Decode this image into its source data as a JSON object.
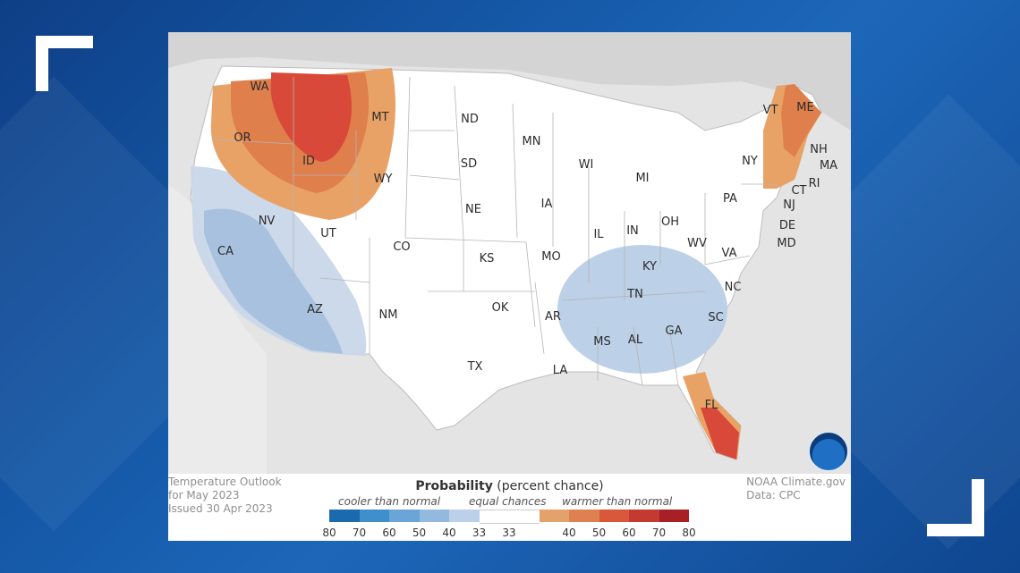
{
  "colors": {
    "frame_blue": "#1559a8",
    "cool_light": "#c7d6ea",
    "cool_mid": "#a9c2e0",
    "warm_light": "#e8a064",
    "warm_mid": "#df7d4a",
    "warm_strong": "#d9493a"
  },
  "map": {
    "states": [
      "WA",
      "OR",
      "ID",
      "MT",
      "WY",
      "ND",
      "SD",
      "NE",
      "MN",
      "IA",
      "WI",
      "MI",
      "IL",
      "IN",
      "OH",
      "KY",
      "WV",
      "VA",
      "PA",
      "NY",
      "VT",
      "ME",
      "NH",
      "MA",
      "CT",
      "RI",
      "NJ",
      "DE",
      "MD",
      "NV",
      "CA",
      "UT",
      "CO",
      "KS",
      "MO",
      "AZ",
      "NM",
      "OK",
      "AR",
      "TX",
      "LA",
      "MS",
      "AL",
      "TN",
      "GA",
      "SC",
      "NC",
      "FL"
    ]
  },
  "info": {
    "line1": "Temperature Outlook",
    "line2": "for May 2023",
    "line3": "Issued 30 Apr 2023",
    "source1": "NOAA Climate.gov",
    "source2": "Data: CPC"
  },
  "legend": {
    "title_bold": "Probability",
    "title_rest": " (percent chance)",
    "cooler": "cooler than normal",
    "equal": "equal chances",
    "warmer": "warmer than normal",
    "cool_ticks": [
      "80",
      "70",
      "60",
      "50",
      "40",
      "33"
    ],
    "warm_ticks": [
      "33",
      "40",
      "50",
      "60",
      "70",
      "80"
    ],
    "swatches": [
      "#1a6aaf",
      "#3e8fcc",
      "#6aa5d7",
      "#93b9df",
      "#bdd0ea",
      "#ffffff",
      "#ffffff",
      "#e3a26b",
      "#e07f50",
      "#d9573a",
      "#c43a31",
      "#a81f26"
    ]
  }
}
